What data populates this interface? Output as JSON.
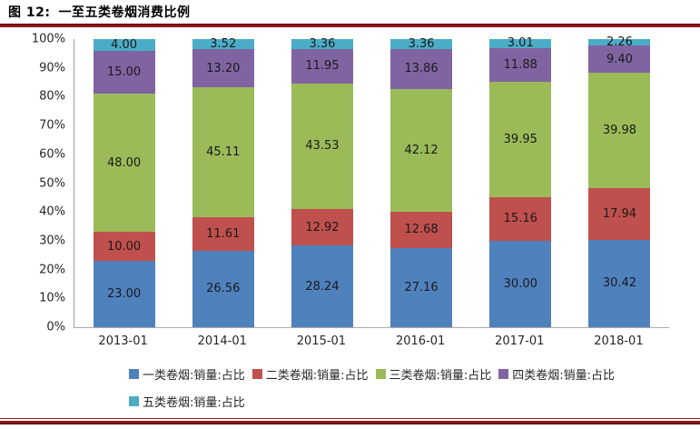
{
  "header": {
    "figure_label": "图 12:",
    "figure_title": "一至五类卷烟消费比例"
  },
  "colors": {
    "rule": "#8B1414",
    "axis_line": "#9D9D9D",
    "tick_text": "#262626",
    "value_label_text": "#1A1A1A"
  },
  "chart_data": {
    "type": "bar",
    "variant": "stacked-100-percent-column",
    "title": "一至五类卷烟消费比例",
    "xlabel": "",
    "ylabel": "",
    "grid": false,
    "legend_position": "bottom",
    "value_label_decimals": 2,
    "axis": {
      "min": 0,
      "max": 100,
      "step": 10,
      "format": "percent"
    },
    "y_tick_labels": [
      "0%",
      "10%",
      "20%",
      "30%",
      "40%",
      "50%",
      "60%",
      "70%",
      "80%",
      "90%",
      "100%"
    ],
    "categories": [
      "2013-01",
      "2014-01",
      "2015-01",
      "2016-01",
      "2017-01",
      "2018-01"
    ],
    "series": [
      {
        "name": "一类卷烟:销量:占比",
        "color": "#4F81BD",
        "values": [
          23.0,
          26.56,
          28.24,
          27.16,
          30.0,
          30.42
        ]
      },
      {
        "name": "二类卷烟:销量:占比",
        "color": "#C0504D",
        "values": [
          10.0,
          11.61,
          12.92,
          12.68,
          15.16,
          17.94
        ]
      },
      {
        "name": "三类卷烟:销量:占比",
        "color": "#9BBB59",
        "values": [
          48.0,
          45.11,
          43.53,
          42.12,
          39.95,
          39.98
        ]
      },
      {
        "name": "四类卷烟:销量:占比",
        "color": "#8064A2",
        "values": [
          15.0,
          13.2,
          11.95,
          13.86,
          11.88,
          9.4
        ]
      },
      {
        "name": "五类卷烟:销量:占比",
        "color": "#4BACC6",
        "values": [
          4.0,
          3.52,
          3.36,
          3.36,
          3.01,
          2.26
        ]
      }
    ]
  }
}
